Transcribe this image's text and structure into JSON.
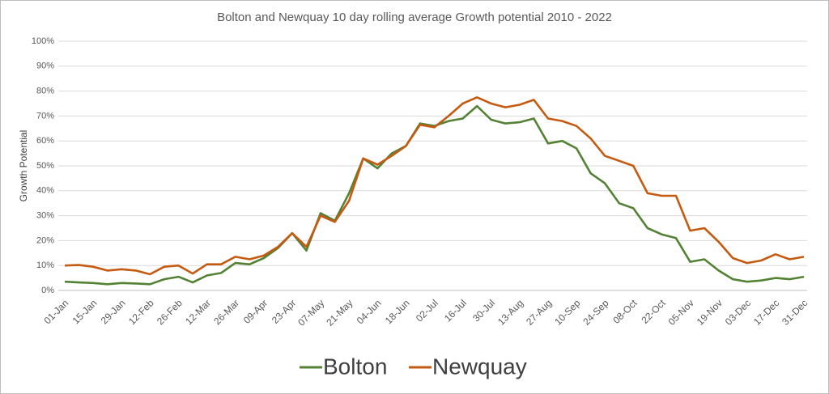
{
  "chart_data": {
    "type": "line",
    "title": "Bolton and Newquay 10 day rolling average Growth potential 2010 - 2022",
    "y_label": "Growth Potential",
    "categories": [
      "01-Jan",
      null,
      "15-Jan",
      null,
      "29-Jan",
      null,
      "12-Feb",
      null,
      "26-Feb",
      null,
      "12-Mar",
      null,
      "26-Mar",
      null,
      "09-Apr",
      null,
      "23-Apr",
      null,
      "07-May",
      null,
      "21-May",
      null,
      "04-Jun",
      null,
      "18-Jun",
      null,
      "02-Jul",
      null,
      "16-Jul",
      null,
      "30-Jul",
      null,
      "13-Aug",
      null,
      "27-Aug",
      null,
      "10-Sep",
      null,
      "24-Sep",
      null,
      "08-Oct",
      null,
      "22-Oct",
      null,
      "05-Nov",
      null,
      "19-Nov",
      null,
      "03-Dec",
      null,
      "17-Dec",
      null,
      "31-Dec"
    ],
    "series": [
      {
        "name": "Bolton",
        "color": "#548235",
        "values": [
          3.5,
          3.2,
          3,
          2.5,
          3,
          2.8,
          2.5,
          4.5,
          5.5,
          3.2,
          6,
          7,
          11,
          10.5,
          13,
          17,
          23,
          16,
          31,
          28,
          39,
          53,
          49,
          55,
          58,
          67,
          66,
          68,
          69,
          74,
          68.5,
          67,
          67.5,
          69,
          59,
          60,
          57,
          47,
          43,
          35,
          33,
          25,
          22.5,
          21,
          11.5,
          12.5,
          8,
          4.5,
          3.5,
          4,
          5,
          4.5,
          5.5
        ]
      },
      {
        "name": "Newquay",
        "color": "#c55a11",
        "values": [
          10,
          10.2,
          9.5,
          8,
          8.5,
          8,
          6.5,
          9.5,
          10,
          6.8,
          10.5,
          10.5,
          13.5,
          12.5,
          14,
          17.5,
          23,
          17.5,
          30,
          27.5,
          36,
          53,
          50.5,
          54,
          58,
          66.5,
          65.5,
          70,
          75,
          77.5,
          75,
          73.5,
          74.5,
          76.5,
          69,
          68,
          66,
          61,
          54,
          52,
          50,
          39,
          38,
          38,
          24,
          25,
          19.5,
          13,
          11,
          12,
          14.5,
          12.5,
          13.5
        ]
      }
    ],
    "ylim": [
      0,
      100
    ],
    "yticks": [
      {
        "value": 0,
        "label": "0%"
      },
      {
        "value": 10,
        "label": "10%"
      },
      {
        "value": 20,
        "label": "20%"
      },
      {
        "value": 30,
        "label": "30%"
      },
      {
        "value": 40,
        "label": "40%"
      },
      {
        "value": 50,
        "label": "50%"
      },
      {
        "value": 60,
        "label": "60%"
      },
      {
        "value": 70,
        "label": "70%"
      },
      {
        "value": 80,
        "label": "80%"
      },
      {
        "value": 90,
        "label": "90%"
      },
      {
        "value": 100,
        "label": "100%"
      }
    ],
    "grid": true,
    "legend": "bottom"
  }
}
